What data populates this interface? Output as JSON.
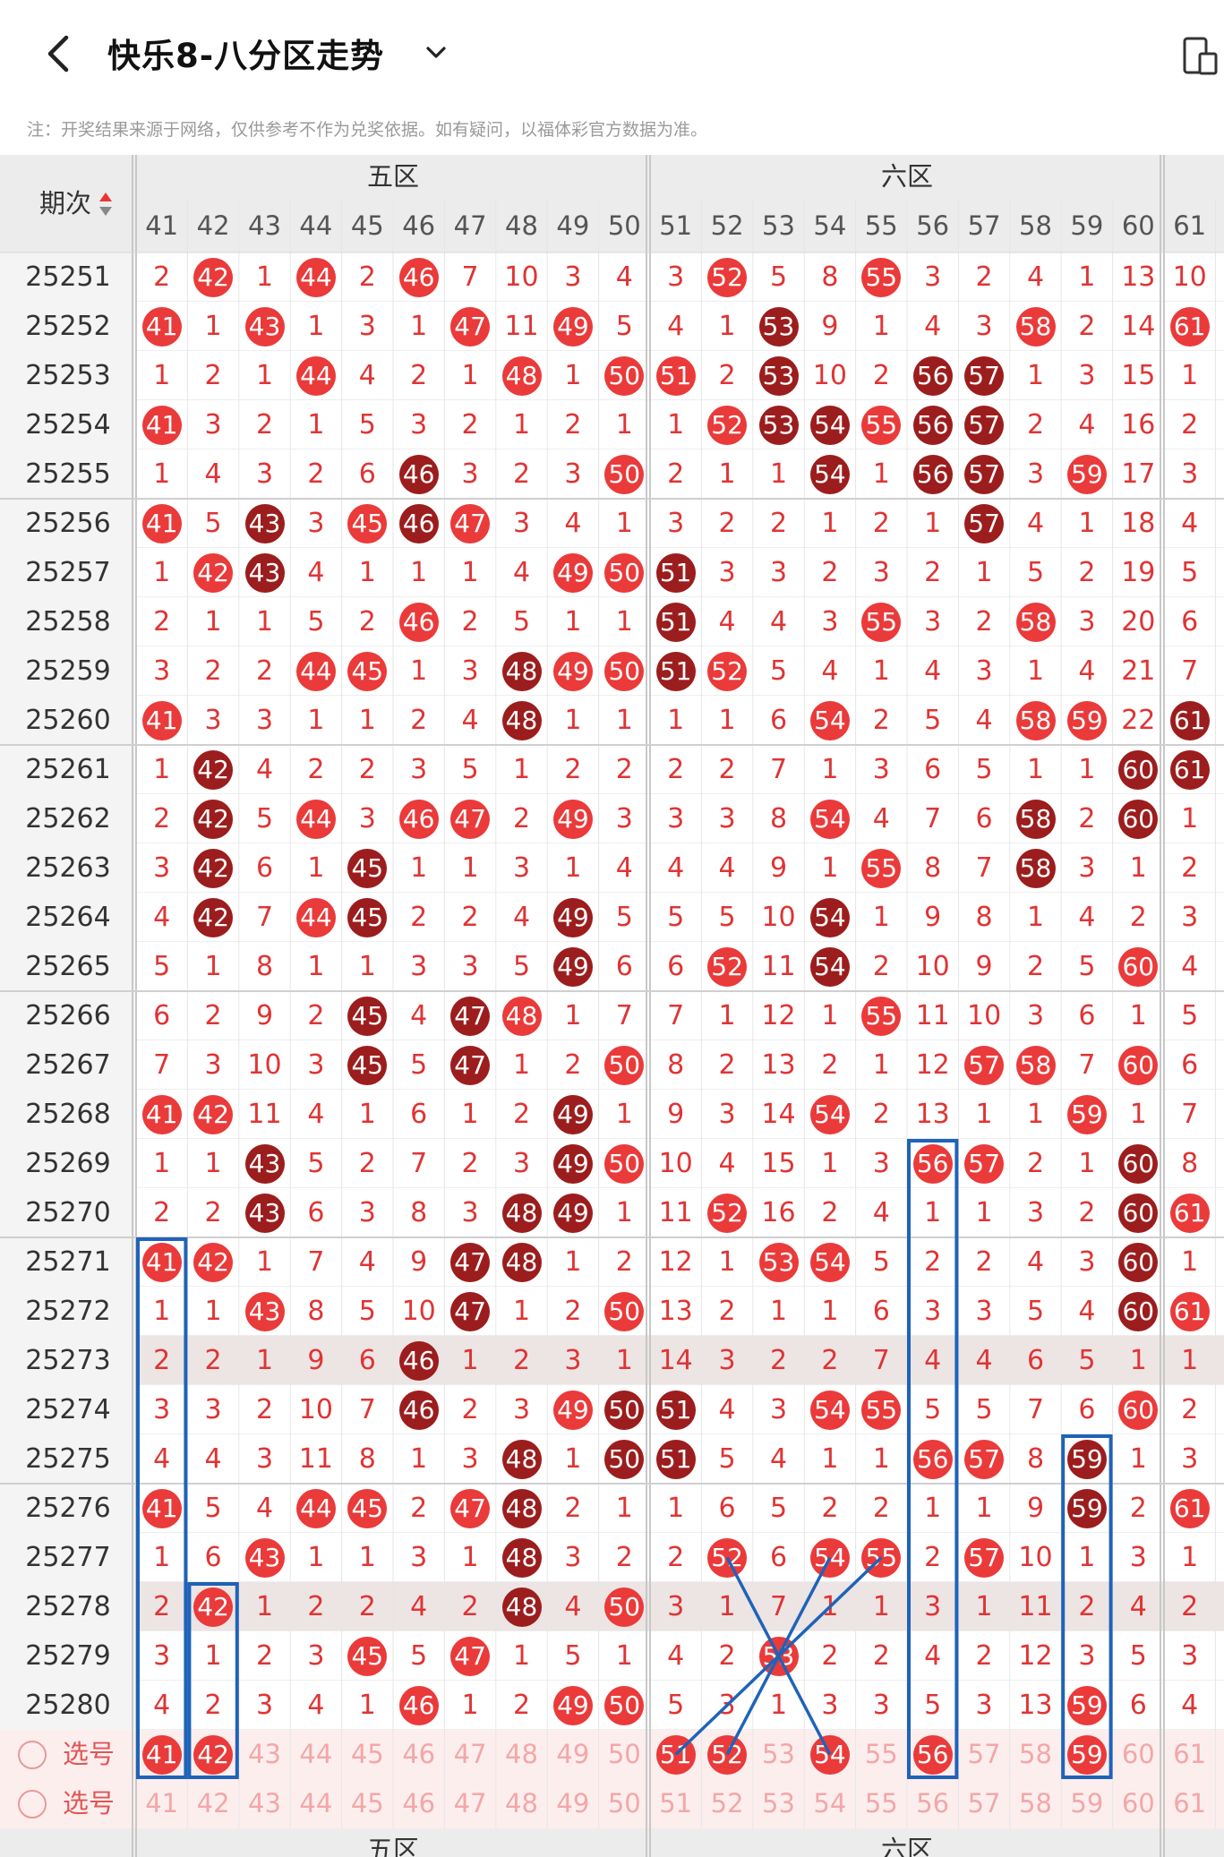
{
  "header": {
    "title": "快乐8-八分区走势",
    "back_icon": "chevron-left-icon",
    "dropdown_icon": "chevron-down-icon",
    "right_icon": "device-icon"
  },
  "notice": "注：开奖结果来源于网络，仅供参考不作为兑奖依据。如有疑问，以福体彩官方数据为准。",
  "table": {
    "period_header": "期次",
    "sort_icon": "sort-arrows-icon",
    "zones": [
      "五区",
      "六区"
    ],
    "columns": [
      "41",
      "42",
      "43",
      "44",
      "45",
      "46",
      "47",
      "48",
      "49",
      "50",
      "51",
      "52",
      "53",
      "54",
      "55",
      "56",
      "57",
      "58",
      "59",
      "60",
      "61"
    ],
    "rows": [
      {
        "period": "25251",
        "cells": [
          "2",
          "42",
          "1",
          "44",
          "2",
          "46",
          "7",
          "10",
          "3",
          "4",
          "3",
          "52",
          "5",
          "8",
          "55",
          "3",
          "2",
          "4",
          "1",
          "13",
          "10"
        ]
      },
      {
        "period": "25252",
        "cells": [
          "41",
          "1",
          "43",
          "1",
          "3",
          "1",
          "47",
          "11",
          "49",
          "5",
          "4",
          "1",
          "53",
          "9",
          "1",
          "4",
          "3",
          "58",
          "2",
          "14",
          "61"
        ]
      },
      {
        "period": "25253",
        "cells": [
          "1",
          "2",
          "1",
          "44",
          "4",
          "2",
          "1",
          "48",
          "1",
          "50",
          "51",
          "2",
          "53",
          "10",
          "2",
          "56",
          "57",
          "1",
          "3",
          "15",
          "1"
        ]
      },
      {
        "period": "25254",
        "cells": [
          "41",
          "3",
          "2",
          "1",
          "5",
          "3",
          "2",
          "1",
          "2",
          "1",
          "1",
          "52",
          "53",
          "54",
          "55",
          "56",
          "57",
          "2",
          "4",
          "16",
          "2"
        ]
      },
      {
        "period": "25255",
        "cells": [
          "1",
          "4",
          "3",
          "2",
          "6",
          "46",
          "3",
          "2",
          "3",
          "50",
          "2",
          "1",
          "1",
          "54",
          "1",
          "56",
          "57",
          "3",
          "59",
          "17",
          "3"
        ]
      },
      {
        "period": "25256",
        "cells": [
          "41",
          "5",
          "43",
          "3",
          "45",
          "46",
          "47",
          "3",
          "4",
          "1",
          "3",
          "2",
          "2",
          "1",
          "2",
          "1",
          "57",
          "4",
          "1",
          "18",
          "4"
        ]
      },
      {
        "period": "25257",
        "cells": [
          "1",
          "42",
          "43",
          "4",
          "1",
          "1",
          "1",
          "4",
          "49",
          "50",
          "51",
          "3",
          "3",
          "2",
          "3",
          "2",
          "1",
          "5",
          "2",
          "19",
          "5"
        ]
      },
      {
        "period": "25258",
        "cells": [
          "2",
          "1",
          "1",
          "5",
          "2",
          "46",
          "2",
          "5",
          "1",
          "1",
          "51",
          "4",
          "4",
          "3",
          "55",
          "3",
          "2",
          "58",
          "3",
          "20",
          "6"
        ]
      },
      {
        "period": "25259",
        "cells": [
          "3",
          "2",
          "2",
          "44",
          "45",
          "1",
          "3",
          "48",
          "49",
          "50",
          "51",
          "52",
          "5",
          "4",
          "1",
          "4",
          "3",
          "1",
          "4",
          "21",
          "7"
        ]
      },
      {
        "period": "25260",
        "cells": [
          "41",
          "3",
          "3",
          "1",
          "1",
          "2",
          "4",
          "48",
          "1",
          "1",
          "1",
          "1",
          "6",
          "54",
          "2",
          "5",
          "4",
          "58",
          "59",
          "22",
          "61"
        ]
      },
      {
        "period": "25261",
        "cells": [
          "1",
          "42",
          "4",
          "2",
          "2",
          "3",
          "5",
          "1",
          "2",
          "2",
          "2",
          "2",
          "7",
          "1",
          "3",
          "6",
          "5",
          "1",
          "1",
          "60",
          "61"
        ]
      },
      {
        "period": "25262",
        "cells": [
          "2",
          "42",
          "5",
          "44",
          "3",
          "46",
          "47",
          "2",
          "49",
          "3",
          "3",
          "3",
          "8",
          "54",
          "4",
          "7",
          "6",
          "58",
          "2",
          "60",
          "1"
        ]
      },
      {
        "period": "25263",
        "cells": [
          "3",
          "42",
          "6",
          "1",
          "45",
          "1",
          "1",
          "3",
          "1",
          "4",
          "4",
          "4",
          "9",
          "1",
          "55",
          "8",
          "7",
          "58",
          "3",
          "1",
          "2"
        ]
      },
      {
        "period": "25264",
        "cells": [
          "4",
          "42",
          "7",
          "44",
          "45",
          "2",
          "2",
          "4",
          "49",
          "5",
          "5",
          "5",
          "10",
          "54",
          "1",
          "9",
          "8",
          "1",
          "4",
          "2",
          "3"
        ]
      },
      {
        "period": "25265",
        "cells": [
          "5",
          "1",
          "8",
          "1",
          "1",
          "3",
          "3",
          "5",
          "49",
          "6",
          "6",
          "52",
          "11",
          "54",
          "2",
          "10",
          "9",
          "2",
          "5",
          "60",
          "4"
        ]
      },
      {
        "period": "25266",
        "cells": [
          "6",
          "2",
          "9",
          "2",
          "45",
          "4",
          "47",
          "48",
          "1",
          "7",
          "7",
          "1",
          "12",
          "1",
          "55",
          "11",
          "10",
          "3",
          "6",
          "1",
          "5"
        ]
      },
      {
        "period": "25267",
        "cells": [
          "7",
          "3",
          "10",
          "3",
          "45",
          "5",
          "47",
          "1",
          "2",
          "50",
          "8",
          "2",
          "13",
          "2",
          "1",
          "12",
          "57",
          "58",
          "7",
          "60",
          "6"
        ]
      },
      {
        "period": "25268",
        "cells": [
          "41",
          "42",
          "11",
          "4",
          "1",
          "6",
          "1",
          "2",
          "49",
          "1",
          "9",
          "3",
          "14",
          "54",
          "2",
          "13",
          "1",
          "1",
          "59",
          "1",
          "7"
        ]
      },
      {
        "period": "25269",
        "cells": [
          "1",
          "1",
          "43",
          "5",
          "2",
          "7",
          "2",
          "3",
          "49",
          "50",
          "10",
          "4",
          "15",
          "1",
          "3",
          "56",
          "57",
          "2",
          "1",
          "60",
          "8"
        ]
      },
      {
        "period": "25270",
        "cells": [
          "2",
          "2",
          "43",
          "6",
          "3",
          "8",
          "3",
          "48",
          "49",
          "1",
          "11",
          "52",
          "16",
          "2",
          "4",
          "1",
          "1",
          "3",
          "2",
          "60",
          "61"
        ]
      },
      {
        "period": "25271",
        "cells": [
          "41",
          "42",
          "1",
          "7",
          "4",
          "9",
          "47",
          "48",
          "1",
          "2",
          "12",
          "1",
          "53",
          "54",
          "5",
          "2",
          "2",
          "4",
          "3",
          "60",
          "1"
        ]
      },
      {
        "period": "25272",
        "cells": [
          "1",
          "1",
          "43",
          "8",
          "5",
          "10",
          "47",
          "1",
          "2",
          "50",
          "13",
          "2",
          "1",
          "1",
          "6",
          "3",
          "3",
          "5",
          "4",
          "60",
          "61"
        ]
      },
      {
        "period": "25273",
        "cells": [
          "2",
          "2",
          "1",
          "9",
          "6",
          "46",
          "1",
          "2",
          "3",
          "1",
          "14",
          "3",
          "2",
          "2",
          "7",
          "4",
          "4",
          "6",
          "5",
          "1",
          "1"
        ]
      },
      {
        "period": "25274",
        "cells": [
          "3",
          "3",
          "2",
          "10",
          "7",
          "46",
          "2",
          "3",
          "49",
          "50",
          "51",
          "4",
          "3",
          "54",
          "55",
          "5",
          "5",
          "7",
          "6",
          "60",
          "2"
        ]
      },
      {
        "period": "25275",
        "cells": [
          "4",
          "4",
          "3",
          "11",
          "8",
          "1",
          "3",
          "48",
          "1",
          "50",
          "51",
          "5",
          "4",
          "1",
          "1",
          "56",
          "57",
          "8",
          "59",
          "1",
          "3"
        ]
      },
      {
        "period": "25276",
        "cells": [
          "41",
          "5",
          "4",
          "44",
          "45",
          "2",
          "47",
          "48",
          "2",
          "1",
          "1",
          "6",
          "5",
          "2",
          "2",
          "1",
          "1",
          "9",
          "59",
          "2",
          "61"
        ]
      },
      {
        "period": "25277",
        "cells": [
          "1",
          "6",
          "43",
          "1",
          "1",
          "3",
          "1",
          "48",
          "3",
          "2",
          "2",
          "52",
          "6",
          "54",
          "55",
          "2",
          "57",
          "10",
          "1",
          "3",
          "1"
        ]
      },
      {
        "period": "25278",
        "cells": [
          "2",
          "42",
          "1",
          "2",
          "2",
          "4",
          "2",
          "48",
          "4",
          "50",
          "3",
          "1",
          "7",
          "1",
          "1",
          "3",
          "1",
          "11",
          "2",
          "4",
          "2"
        ]
      },
      {
        "period": "25279",
        "cells": [
          "3",
          "1",
          "2",
          "3",
          "45",
          "5",
          "47",
          "1",
          "5",
          "1",
          "4",
          "2",
          "53",
          "2",
          "2",
          "4",
          "2",
          "12",
          "3",
          "5",
          "3"
        ]
      },
      {
        "period": "25280",
        "cells": [
          "4",
          "2",
          "3",
          "4",
          "1",
          "46",
          "1",
          "2",
          "49",
          "50",
          "5",
          "3",
          "1",
          "3",
          "3",
          "5",
          "3",
          "13",
          "59",
          "6",
          "4"
        ]
      }
    ],
    "select_rows": [
      {
        "label": "选号",
        "selected": [
          "41",
          "42",
          "51",
          "52",
          "54",
          "56",
          "59"
        ]
      },
      {
        "label": "选号",
        "selected": []
      }
    ],
    "colors": {
      "ball_red": "#ea3a3a",
      "ball_dark": "#9c1d1d",
      "annotation": "#1f63b8",
      "number_text": "#e03434"
    }
  }
}
